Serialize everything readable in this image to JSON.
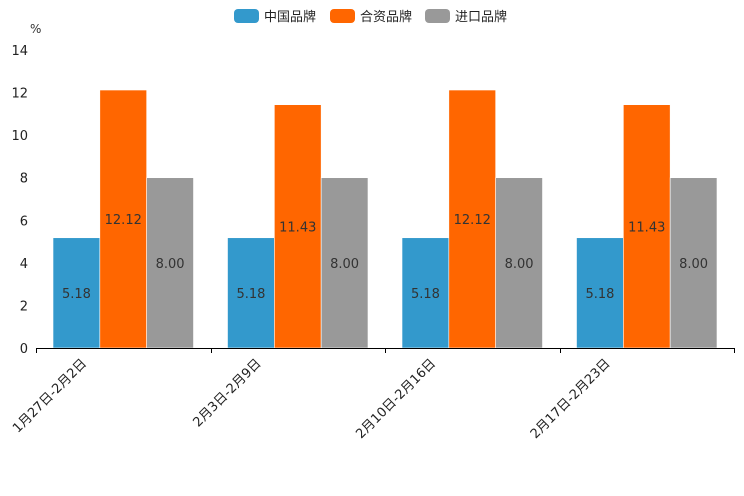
{
  "chart_data": {
    "type": "bar",
    "title": "",
    "ylabel": "%",
    "xlabel": "",
    "ylim": [
      0,
      14
    ],
    "yticks": [
      "0",
      "2",
      "4",
      "6",
      "8",
      "10",
      "12",
      "14"
    ],
    "categories": [
      "1月27日-2月2日",
      "2月3日-2月9日",
      "2月10日-2月16日",
      "2月17日-2月23日"
    ],
    "series": [
      {
        "name": "中国品牌",
        "color": "#3399cc",
        "values": [
          5.18,
          5.18,
          5.18,
          5.18
        ],
        "labels": [
          "5.18",
          "5.18",
          "5.18",
          "5.18"
        ]
      },
      {
        "name": "合资品牌",
        "color": "#ff6600",
        "values": [
          12.12,
          11.43,
          12.12,
          11.43
        ],
        "labels": [
          "12.12",
          "11.43",
          "12.12",
          "11.43"
        ]
      },
      {
        "name": "进口品牌",
        "color": "#999999",
        "values": [
          8.0,
          8.0,
          8.0,
          8.0
        ],
        "labels": [
          "8.00",
          "8.00",
          "8.00",
          "8.00"
        ]
      }
    ],
    "legend": "top-center",
    "grid": false
  }
}
